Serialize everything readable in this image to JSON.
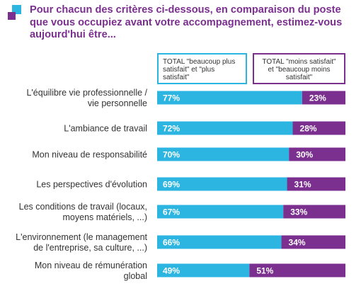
{
  "header": {
    "title": "Pour chacun des critères ci-dessous, en comparaison du poste que vous occupiez avant votre accompagnement, estimez-vous aujourd'hui être..."
  },
  "legend": {
    "satisfied": "TOTAL \"beaucoup plus satisfait\" et \"plus satisfait\"",
    "unsatisfied": "TOTAL \"moins satisfait\" et \"beaucoup moins satisfait\""
  },
  "colors": {
    "satisfied": "#2bb5e0",
    "unsatisfied": "#7b2f8f",
    "title": "#7b2f8f"
  },
  "chart_data": {
    "type": "bar",
    "orientation": "horizontal",
    "stacked": true,
    "categories": [
      [
        "L'équilibre vie professionnelle /",
        "vie personnelle"
      ],
      [
        "L'ambiance de travail"
      ],
      [
        "Mon niveau de responsabilité"
      ],
      [
        "Les perspectives d'évolution"
      ],
      [
        "Les conditions de travail (locaux,",
        "moyens matériels, ...)"
      ],
      [
        "L'environnement (le management",
        "de l'entreprise, sa culture, ...)"
      ],
      [
        "Mon niveau de rémunération",
        "global"
      ]
    ],
    "series": [
      {
        "name": "TOTAL \"beaucoup plus satisfait\" et \"plus satisfait\"",
        "values": [
          77,
          72,
          70,
          69,
          67,
          66,
          49
        ]
      },
      {
        "name": "TOTAL \"moins satisfait\" et \"beaucoup moins satisfait\"",
        "values": [
          23,
          28,
          30,
          31,
          33,
          34,
          51
        ]
      }
    ],
    "value_suffix": "%",
    "xlim": [
      0,
      100
    ],
    "grid": false,
    "legend_position": "top"
  }
}
